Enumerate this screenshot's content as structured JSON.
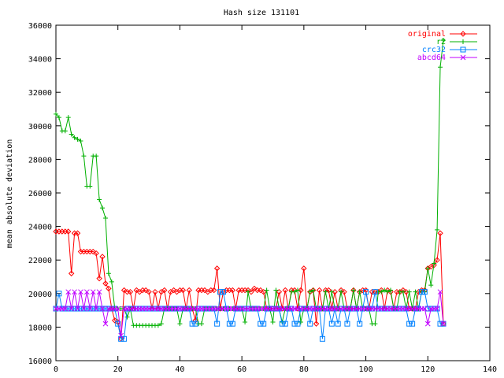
{
  "chart_data": {
    "type": "line",
    "title": "Hash size 131101",
    "xlabel": "",
    "ylabel": "mean absolute deviation",
    "xlim": [
      0,
      140
    ],
    "ylim": [
      16000,
      36000
    ],
    "xticks": [
      "0",
      "20",
      "40",
      "60",
      "80",
      "100",
      "120",
      "140"
    ],
    "yticks": [
      "16000",
      "18000",
      "20000",
      "22000",
      "24000",
      "26000",
      "28000",
      "30000",
      "32000",
      "34000",
      "36000"
    ],
    "grid": false,
    "legend_position": "top-right",
    "series": [
      {
        "name": "original",
        "color": "#ff0000",
        "marker": "diamond",
        "x": [
          0,
          1,
          2,
          3,
          4,
          5,
          6,
          7,
          8,
          9,
          10,
          11,
          12,
          13,
          14,
          15,
          16,
          17,
          18,
          19,
          20,
          21,
          22,
          23,
          24,
          25,
          26,
          27,
          28,
          29,
          30,
          31,
          32,
          33,
          34,
          35,
          36,
          37,
          38,
          39,
          40,
          41,
          42,
          43,
          44,
          45,
          46,
          47,
          48,
          49,
          50,
          51,
          52,
          53,
          54,
          55,
          56,
          57,
          58,
          59,
          60,
          61,
          62,
          63,
          64,
          65,
          66,
          67,
          68,
          69,
          70,
          71,
          72,
          73,
          74,
          75,
          76,
          77,
          78,
          79,
          80,
          81,
          82,
          83,
          84,
          85,
          86,
          87,
          88,
          89,
          90,
          91,
          92,
          93,
          94,
          95,
          96,
          97,
          98,
          99,
          100,
          101,
          102,
          103,
          104,
          105,
          106,
          107,
          108,
          109,
          110,
          111,
          112,
          113,
          114,
          115,
          116,
          117,
          118,
          119,
          120,
          121,
          122,
          123,
          124,
          125
        ],
        "y": [
          23700,
          23700,
          23700,
          23700,
          23700,
          21200,
          23600,
          23600,
          22500,
          22500,
          22500,
          22500,
          22500,
          22400,
          20900,
          22200,
          20600,
          20300,
          19100,
          18400,
          18300,
          17300,
          20200,
          20100,
          20100,
          19100,
          20200,
          20100,
          20200,
          20200,
          20100,
          19100,
          20100,
          19100,
          20100,
          20200,
          19100,
          20100,
          20200,
          20100,
          20200,
          20200,
          19100,
          20200,
          19100,
          18400,
          20200,
          20200,
          20200,
          20100,
          20200,
          20200,
          21500,
          19100,
          20100,
          20200,
          20200,
          20200,
          19100,
          20200,
          20200,
          20200,
          20200,
          20100,
          20300,
          20200,
          20200,
          20100,
          19100,
          19100,
          19100,
          19100,
          20100,
          19100,
          20200,
          19100,
          20200,
          20200,
          19100,
          20200,
          21500,
          19100,
          20100,
          20200,
          18200,
          20200,
          19100,
          20200,
          20200,
          19100,
          20100,
          19100,
          20200,
          20100,
          19100,
          19100,
          20200,
          19100,
          20100,
          20200,
          20200,
          19100,
          20100,
          20100,
          20100,
          20200,
          19100,
          20200,
          20100,
          19100,
          20100,
          20100,
          20200,
          20100,
          19100,
          19100,
          19100,
          20100,
          20200,
          20200,
          21500,
          21600,
          21700,
          22000,
          23600,
          18200
        ]
      },
      {
        "name": "r2",
        "color": "#00b000",
        "marker": "plus",
        "x": [
          0,
          1,
          2,
          3,
          4,
          5,
          6,
          7,
          8,
          9,
          10,
          11,
          12,
          13,
          14,
          15,
          16,
          17,
          18,
          19,
          20,
          21,
          22,
          23,
          24,
          25,
          26,
          27,
          28,
          29,
          30,
          31,
          32,
          33,
          34,
          35,
          36,
          37,
          38,
          39,
          40,
          41,
          42,
          43,
          44,
          45,
          46,
          47,
          48,
          49,
          50,
          51,
          52,
          53,
          54,
          55,
          56,
          57,
          58,
          59,
          60,
          61,
          62,
          63,
          64,
          65,
          66,
          67,
          68,
          69,
          70,
          71,
          72,
          73,
          74,
          75,
          76,
          77,
          78,
          79,
          80,
          81,
          82,
          83,
          84,
          85,
          86,
          87,
          88,
          89,
          90,
          91,
          92,
          93,
          94,
          95,
          96,
          97,
          98,
          99,
          100,
          101,
          102,
          103,
          104,
          105,
          106,
          107,
          108,
          109,
          110,
          111,
          112,
          113,
          114,
          115,
          116,
          117,
          118,
          119,
          120,
          121,
          122,
          123,
          124,
          125
        ],
        "y": [
          30700,
          30500,
          29700,
          29700,
          30500,
          29500,
          29300,
          29200,
          29100,
          28200,
          26400,
          26400,
          28200,
          28200,
          25600,
          25100,
          24500,
          21200,
          20700,
          19100,
          19100,
          19100,
          19100,
          18600,
          19100,
          18100,
          18100,
          18100,
          18100,
          18100,
          18100,
          18100,
          18100,
          18100,
          18200,
          19100,
          19100,
          19100,
          19100,
          19100,
          18200,
          19100,
          19100,
          19100,
          19100,
          19100,
          18200,
          18200,
          19100,
          19100,
          19100,
          19100,
          19100,
          19100,
          19100,
          19100,
          19100,
          19100,
          19100,
          19100,
          19100,
          18300,
          20100,
          19100,
          19100,
          19100,
          19100,
          19100,
          20200,
          19100,
          18300,
          20200,
          19100,
          18300,
          19100,
          19100,
          20100,
          20100,
          20200,
          18300,
          19100,
          19100,
          20100,
          20200,
          19100,
          19100,
          19100,
          20100,
          19100,
          20100,
          19100,
          19100,
          20100,
          19100,
          19100,
          19100,
          20200,
          19100,
          20100,
          19100,
          19100,
          19100,
          18200,
          18200,
          20100,
          20100,
          20200,
          20100,
          20200,
          19100,
          19100,
          20100,
          20100,
          19100,
          20100,
          19100,
          20100,
          19100,
          20100,
          20100,
          21500,
          20500,
          21800,
          23800,
          33500,
          35100
        ]
      },
      {
        "name": "crc32",
        "color": "#0080ff",
        "marker": "square",
        "x": [
          0,
          1,
          2,
          3,
          4,
          5,
          6,
          7,
          8,
          9,
          10,
          11,
          12,
          13,
          14,
          15,
          16,
          17,
          18,
          19,
          20,
          21,
          22,
          23,
          24,
          25,
          26,
          27,
          28,
          29,
          30,
          31,
          32,
          33,
          34,
          35,
          36,
          37,
          38,
          39,
          40,
          41,
          42,
          43,
          44,
          45,
          46,
          47,
          48,
          49,
          50,
          51,
          52,
          53,
          54,
          55,
          56,
          57,
          58,
          59,
          60,
          61,
          62,
          63,
          64,
          65,
          66,
          67,
          68,
          69,
          70,
          71,
          72,
          73,
          74,
          75,
          76,
          77,
          78,
          79,
          80,
          81,
          82,
          83,
          84,
          85,
          86,
          87,
          88,
          89,
          90,
          91,
          92,
          93,
          94,
          95,
          96,
          97,
          98,
          99,
          100,
          101,
          102,
          103,
          104,
          105,
          106,
          107,
          108,
          109,
          110,
          111,
          112,
          113,
          114,
          115,
          116,
          117,
          118,
          119,
          120,
          121,
          122,
          123,
          124,
          125
        ],
        "y": [
          19100,
          20000,
          19100,
          19100,
          19100,
          19100,
          19100,
          19100,
          19100,
          19100,
          19100,
          19100,
          19100,
          19100,
          19100,
          19100,
          19100,
          19100,
          19100,
          19100,
          18200,
          17300,
          17300,
          19100,
          19100,
          19100,
          19100,
          19100,
          19100,
          19100,
          19100,
          19100,
          19100,
          19100,
          19100,
          19100,
          19100,
          19100,
          19100,
          19100,
          19100,
          19100,
          19100,
          19100,
          18200,
          18200,
          19100,
          19100,
          19100,
          19100,
          19100,
          19100,
          18200,
          20100,
          20100,
          19100,
          18200,
          18200,
          19100,
          19100,
          19100,
          19100,
          19100,
          19100,
          19100,
          19100,
          18200,
          18200,
          19100,
          19100,
          19100,
          19100,
          19100,
          18200,
          18200,
          19100,
          19100,
          18200,
          18200,
          19100,
          19100,
          19100,
          18200,
          19100,
          19100,
          19100,
          17300,
          19100,
          19100,
          18200,
          19100,
          18200,
          19100,
          19100,
          18200,
          19100,
          19100,
          19100,
          18200,
          19100,
          20100,
          19100,
          19100,
          20100,
          19100,
          19100,
          19100,
          19100,
          19100,
          19100,
          19100,
          19100,
          19100,
          19100,
          18200,
          18200,
          19100,
          19100,
          20100,
          20100,
          19100,
          19100,
          19100,
          19100,
          18200,
          18200
        ]
      },
      {
        "name": "abcd64",
        "color": "#c000ff",
        "marker": "cross",
        "x": [
          0,
          1,
          2,
          3,
          4,
          5,
          6,
          7,
          8,
          9,
          10,
          11,
          12,
          13,
          14,
          15,
          16,
          17,
          18,
          19,
          20,
          21,
          22,
          23,
          24,
          25,
          26,
          27,
          28,
          29,
          30,
          31,
          32,
          33,
          34,
          35,
          36,
          37,
          38,
          39,
          40,
          41,
          42,
          43,
          44,
          45,
          46,
          47,
          48,
          49,
          50,
          51,
          52,
          53,
          54,
          55,
          56,
          57,
          58,
          59,
          60,
          61,
          62,
          63,
          64,
          65,
          66,
          67,
          68,
          69,
          70,
          71,
          72,
          73,
          74,
          75,
          76,
          77,
          78,
          79,
          80,
          81,
          82,
          83,
          84,
          85,
          86,
          87,
          88,
          89,
          90,
          91,
          92,
          93,
          94,
          95,
          96,
          97,
          98,
          99,
          100,
          101,
          102,
          103,
          104,
          105,
          106,
          107,
          108,
          109,
          110,
          111,
          112,
          113,
          114,
          115,
          116,
          117,
          118,
          119,
          120,
          121,
          122,
          123,
          124,
          125
        ],
        "y": [
          19100,
          19100,
          19100,
          19100,
          20100,
          19100,
          20100,
          19100,
          20100,
          19100,
          20100,
          19100,
          20100,
          19100,
          20100,
          19100,
          18200,
          19100,
          19100,
          19100,
          19100,
          17500,
          19100,
          19100,
          19100,
          19100,
          19100,
          19100,
          19100,
          19100,
          19100,
          19100,
          19100,
          19100,
          19100,
          19100,
          19100,
          19100,
          19100,
          19100,
          19100,
          19100,
          19100,
          19100,
          19100,
          19100,
          19100,
          19100,
          19100,
          19100,
          19100,
          19100,
          19100,
          19100,
          19100,
          19100,
          19100,
          19100,
          19100,
          19100,
          19100,
          19100,
          19100,
          19100,
          19100,
          19100,
          19100,
          19100,
          19100,
          19100,
          19100,
          19100,
          19100,
          19100,
          19100,
          19100,
          19100,
          19100,
          19100,
          19100,
          19100,
          19100,
          19100,
          19100,
          19100,
          19100,
          19100,
          19100,
          19100,
          19100,
          19100,
          19100,
          19100,
          19100,
          19100,
          19100,
          19100,
          19100,
          19100,
          19100,
          19100,
          19100,
          19100,
          19100,
          19100,
          19100,
          19100,
          19100,
          19100,
          19100,
          19100,
          19100,
          19100,
          19100,
          19100,
          19100,
          19100,
          19100,
          19100,
          19100,
          18200,
          19100,
          19100,
          19100,
          20100,
          18200
        ]
      }
    ]
  }
}
